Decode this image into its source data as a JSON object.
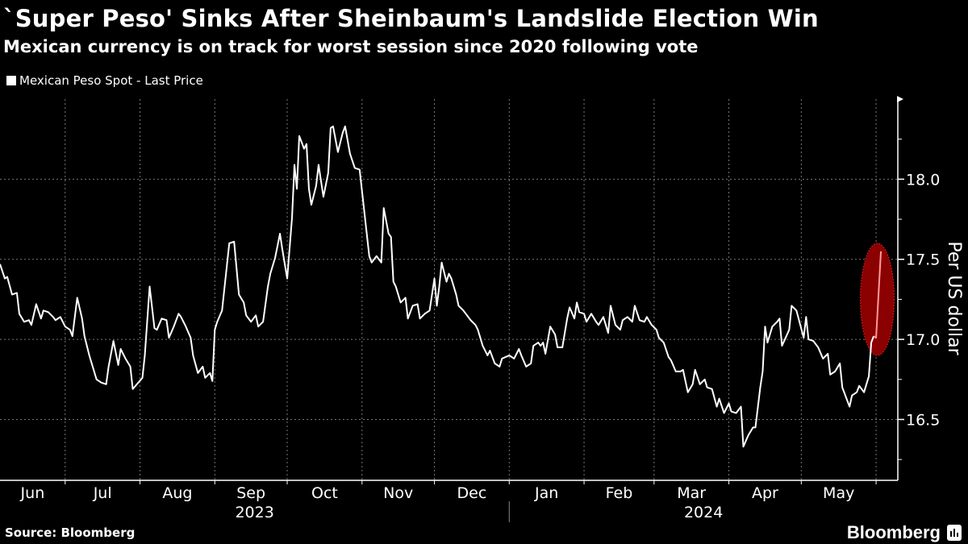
{
  "header": {
    "title": "`Super Peso' Sinks After Sheinbaum's Landslide Election Win",
    "subtitle": "Mexican currency is on track for worst session since 2020 following vote"
  },
  "footer": {
    "source": "Source: Bloomberg",
    "logo_text": "Bloomberg"
  },
  "colors": {
    "background": "#000000",
    "line": "#ffffff",
    "highlight": "#8b0000",
    "highlight_border": "#e02020",
    "highlight_line": "#ff9a9a"
  },
  "chart_data": {
    "type": "line",
    "title": "`Super Peso' Sinks After Sheinbaum's Landslide Election Win",
    "subtitle": "Mexican currency is on track for worst session since 2020 following vote",
    "ylabel": "Per US dollar",
    "y_axis_side": "right",
    "ylim": [
      16.12,
      18.5
    ],
    "yticks": [
      16.5,
      17.0,
      17.5,
      18.0
    ],
    "ytick_labels": [
      "16.5",
      "17.0",
      "17.5",
      "18.0"
    ],
    "yminor_step": 0.25,
    "xlim": [
      "2023-06-04",
      "2024-06-10"
    ],
    "month_labels": [
      {
        "month": "2023-06",
        "label": "Jun"
      },
      {
        "month": "2023-07",
        "label": "Jul"
      },
      {
        "month": "2023-08",
        "label": "Aug"
      },
      {
        "month": "2023-09",
        "label": "Sep"
      },
      {
        "month": "2023-10",
        "label": "Oct"
      },
      {
        "month": "2023-11",
        "label": "Nov"
      },
      {
        "month": "2023-12",
        "label": "Dec"
      },
      {
        "month": "2024-01",
        "label": "Jan"
      },
      {
        "month": "2024-02",
        "label": "Feb"
      },
      {
        "month": "2024-03",
        "label": "Mar"
      },
      {
        "month": "2024-04",
        "label": "Apr"
      },
      {
        "month": "2024-05",
        "label": "May"
      }
    ],
    "year_labels": [
      {
        "year": "2023",
        "label": "2023"
      },
      {
        "year": "2024",
        "label": "2024"
      }
    ],
    "grid": true,
    "legend_position": "top-left",
    "highlight": {
      "shape": "ellipse",
      "from": "2024-05-31",
      "to": "2024-06-03",
      "ymin": 16.9,
      "ymax": 17.6
    },
    "series": [
      {
        "name": "Mexican Peso Spot - Last Price",
        "color": "#ffffff",
        "points": [
          [
            "2023-06-04",
            17.47
          ],
          [
            "2023-06-06",
            17.38
          ],
          [
            "2023-06-07",
            17.39
          ],
          [
            "2023-06-09",
            17.28
          ],
          [
            "2023-06-11",
            17.29
          ],
          [
            "2023-06-12",
            17.16
          ],
          [
            "2023-06-14",
            17.11
          ],
          [
            "2023-06-16",
            17.12
          ],
          [
            "2023-06-17",
            17.09
          ],
          [
            "2023-06-19",
            17.22
          ],
          [
            "2023-06-21",
            17.13
          ],
          [
            "2023-06-22",
            17.18
          ],
          [
            "2023-06-24",
            17.17
          ],
          [
            "2023-06-26",
            17.14
          ],
          [
            "2023-06-27",
            17.12
          ],
          [
            "2023-06-29",
            17.14
          ],
          [
            "2023-07-01",
            17.08
          ],
          [
            "2023-07-03",
            17.06
          ],
          [
            "2023-07-04",
            17.02
          ],
          [
            "2023-07-06",
            17.26
          ],
          [
            "2023-07-08",
            17.13
          ],
          [
            "2023-07-09",
            17.02
          ],
          [
            "2023-07-11",
            16.9
          ],
          [
            "2023-07-13",
            16.8
          ],
          [
            "2023-07-14",
            16.75
          ],
          [
            "2023-07-16",
            16.73
          ],
          [
            "2023-07-18",
            16.72
          ],
          [
            "2023-07-19",
            16.83
          ],
          [
            "2023-07-21",
            16.99
          ],
          [
            "2023-07-23",
            16.84
          ],
          [
            "2023-07-24",
            16.94
          ],
          [
            "2023-07-26",
            16.88
          ],
          [
            "2023-07-28",
            16.83
          ],
          [
            "2023-07-29",
            16.69
          ],
          [
            "2023-08-02",
            16.76
          ],
          [
            "2023-08-03",
            16.9
          ],
          [
            "2023-08-05",
            17.33
          ],
          [
            "2023-08-07",
            17.07
          ],
          [
            "2023-08-08",
            17.06
          ],
          [
            "2023-08-10",
            17.13
          ],
          [
            "2023-08-12",
            17.12
          ],
          [
            "2023-08-13",
            17.01
          ],
          [
            "2023-08-15",
            17.08
          ],
          [
            "2023-08-17",
            17.16
          ],
          [
            "2023-08-18",
            17.14
          ],
          [
            "2023-08-20",
            17.08
          ],
          [
            "2023-08-22",
            17.01
          ],
          [
            "2023-08-23",
            16.9
          ],
          [
            "2023-08-25",
            16.79
          ],
          [
            "2023-08-27",
            16.83
          ],
          [
            "2023-08-28",
            16.76
          ],
          [
            "2023-08-30",
            16.79
          ],
          [
            "2023-08-31",
            16.74
          ],
          [
            "2023-09-01",
            17.06
          ],
          [
            "2023-09-02",
            17.11
          ],
          [
            "2023-09-04",
            17.18
          ],
          [
            "2023-09-06",
            17.46
          ],
          [
            "2023-09-07",
            17.6
          ],
          [
            "2023-09-09",
            17.61
          ],
          [
            "2023-09-11",
            17.28
          ],
          [
            "2023-09-13",
            17.23
          ],
          [
            "2023-09-14",
            17.15
          ],
          [
            "2023-09-16",
            17.11
          ],
          [
            "2023-09-18",
            17.15
          ],
          [
            "2023-09-19",
            17.08
          ],
          [
            "2023-09-21",
            17.11
          ],
          [
            "2023-09-23",
            17.33
          ],
          [
            "2023-09-24",
            17.41
          ],
          [
            "2023-09-26",
            17.51
          ],
          [
            "2023-09-28",
            17.66
          ],
          [
            "2023-09-29",
            17.56
          ],
          [
            "2023-10-01",
            17.38
          ],
          [
            "2023-10-03",
            17.76
          ],
          [
            "2023-10-04",
            18.09
          ],
          [
            "2023-10-05",
            17.94
          ],
          [
            "2023-10-06",
            18.27
          ],
          [
            "2023-10-08",
            18.19
          ],
          [
            "2023-10-09",
            18.22
          ],
          [
            "2023-10-10",
            17.94
          ],
          [
            "2023-10-11",
            17.84
          ],
          [
            "2023-10-13",
            17.96
          ],
          [
            "2023-10-14",
            18.09
          ],
          [
            "2023-10-16",
            17.89
          ],
          [
            "2023-10-18",
            18.04
          ],
          [
            "2023-10-19",
            18.32
          ],
          [
            "2023-10-20",
            18.33
          ],
          [
            "2023-10-22",
            18.17
          ],
          [
            "2023-10-24",
            18.29
          ],
          [
            "2023-10-25",
            18.33
          ],
          [
            "2023-10-27",
            18.16
          ],
          [
            "2023-10-29",
            18.07
          ],
          [
            "2023-10-31",
            18.06
          ],
          [
            "2023-11-02",
            17.79
          ],
          [
            "2023-11-04",
            17.52
          ],
          [
            "2023-11-05",
            17.48
          ],
          [
            "2023-11-07",
            17.52
          ],
          [
            "2023-11-09",
            17.48
          ],
          [
            "2023-11-10",
            17.82
          ],
          [
            "2023-11-12",
            17.66
          ],
          [
            "2023-11-13",
            17.64
          ],
          [
            "2023-11-14",
            17.36
          ],
          [
            "2023-11-15",
            17.33
          ],
          [
            "2023-11-17",
            17.23
          ],
          [
            "2023-11-19",
            17.26
          ],
          [
            "2023-11-20",
            17.13
          ],
          [
            "2023-11-22",
            17.21
          ],
          [
            "2023-11-24",
            17.22
          ],
          [
            "2023-11-25",
            17.13
          ],
          [
            "2023-11-27",
            17.16
          ],
          [
            "2023-11-29",
            17.18
          ],
          [
            "2023-11-30",
            17.28
          ],
          [
            "2023-12-01",
            17.38
          ],
          [
            "2023-12-02",
            17.21
          ],
          [
            "2023-12-03",
            17.33
          ],
          [
            "2023-12-04",
            17.48
          ],
          [
            "2023-12-06",
            17.36
          ],
          [
            "2023-12-07",
            17.41
          ],
          [
            "2023-12-08",
            17.38
          ],
          [
            "2023-12-10",
            17.28
          ],
          [
            "2023-12-11",
            17.21
          ],
          [
            "2023-12-13",
            17.18
          ],
          [
            "2023-12-14",
            17.16
          ],
          [
            "2023-12-16",
            17.12
          ],
          [
            "2023-12-18",
            17.09
          ],
          [
            "2023-12-19",
            17.06
          ],
          [
            "2023-12-21",
            16.96
          ],
          [
            "2023-12-23",
            16.9
          ],
          [
            "2023-12-24",
            16.93
          ],
          [
            "2023-12-26",
            16.85
          ],
          [
            "2023-12-28",
            16.83
          ],
          [
            "2023-12-29",
            16.88
          ],
          [
            "2024-01-01",
            16.9
          ],
          [
            "2024-01-03",
            16.88
          ],
          [
            "2024-01-05",
            16.94
          ],
          [
            "2024-01-06",
            16.9
          ],
          [
            "2024-01-08",
            16.83
          ],
          [
            "2024-01-10",
            16.85
          ],
          [
            "2024-01-11",
            16.96
          ],
          [
            "2024-01-13",
            16.98
          ],
          [
            "2024-01-14",
            16.96
          ],
          [
            "2024-01-15",
            16.98
          ],
          [
            "2024-01-16",
            16.91
          ],
          [
            "2024-01-18",
            17.08
          ],
          [
            "2024-01-20",
            17.03
          ],
          [
            "2024-01-21",
            16.95
          ],
          [
            "2024-01-23",
            16.95
          ],
          [
            "2024-01-25",
            17.13
          ],
          [
            "2024-01-26",
            17.2
          ],
          [
            "2024-01-28",
            17.13
          ],
          [
            "2024-01-29",
            17.23
          ],
          [
            "2024-01-30",
            17.17
          ],
          [
            "2024-02-01",
            17.16
          ],
          [
            "2024-02-02",
            17.11
          ],
          [
            "2024-02-04",
            17.16
          ],
          [
            "2024-02-06",
            17.11
          ],
          [
            "2024-02-07",
            17.09
          ],
          [
            "2024-02-09",
            17.14
          ],
          [
            "2024-02-11",
            17.04
          ],
          [
            "2024-02-12",
            17.21
          ],
          [
            "2024-02-14",
            17.09
          ],
          [
            "2024-02-16",
            17.06
          ],
          [
            "2024-02-17",
            17.12
          ],
          [
            "2024-02-19",
            17.14
          ],
          [
            "2024-02-21",
            17.11
          ],
          [
            "2024-02-22",
            17.21
          ],
          [
            "2024-02-24",
            17.12
          ],
          [
            "2024-02-26",
            17.11
          ],
          [
            "2024-02-27",
            17.14
          ],
          [
            "2024-02-29",
            17.09
          ],
          [
            "2024-03-02",
            17.06
          ],
          [
            "2024-03-03",
            17.01
          ],
          [
            "2024-03-05",
            16.98
          ],
          [
            "2024-03-07",
            16.89
          ],
          [
            "2024-03-08",
            16.87
          ],
          [
            "2024-03-10",
            16.8
          ],
          [
            "2024-03-12",
            16.8
          ],
          [
            "2024-03-13",
            16.81
          ],
          [
            "2024-03-15",
            16.67
          ],
          [
            "2024-03-17",
            16.72
          ],
          [
            "2024-03-18",
            16.81
          ],
          [
            "2024-03-20",
            16.72
          ],
          [
            "2024-03-22",
            16.75
          ],
          [
            "2024-03-23",
            16.7
          ],
          [
            "2024-03-25",
            16.69
          ],
          [
            "2024-03-27",
            16.58
          ],
          [
            "2024-03-28",
            16.63
          ],
          [
            "2024-03-30",
            16.54
          ],
          [
            "2024-04-01",
            16.6
          ],
          [
            "2024-04-02",
            16.55
          ],
          [
            "2024-04-04",
            16.54
          ],
          [
            "2024-04-06",
            16.58
          ],
          [
            "2024-04-07",
            16.33
          ],
          [
            "2024-04-09",
            16.4
          ],
          [
            "2024-04-11",
            16.45
          ],
          [
            "2024-04-12",
            16.45
          ],
          [
            "2024-04-14",
            16.7
          ],
          [
            "2024-04-15",
            16.8
          ],
          [
            "2024-04-16",
            17.08
          ],
          [
            "2024-04-17",
            16.98
          ],
          [
            "2024-04-19",
            17.08
          ],
          [
            "2024-04-21",
            17.11
          ],
          [
            "2024-04-22",
            17.13
          ],
          [
            "2024-04-23",
            16.96
          ],
          [
            "2024-04-26",
            17.06
          ],
          [
            "2024-04-27",
            17.21
          ],
          [
            "2024-04-29",
            17.18
          ],
          [
            "2024-05-02",
            17.01
          ],
          [
            "2024-05-03",
            17.14
          ],
          [
            "2024-05-04",
            17.0
          ],
          [
            "2024-05-06",
            16.99
          ],
          [
            "2024-05-08",
            16.95
          ],
          [
            "2024-05-10",
            16.88
          ],
          [
            "2024-05-12",
            16.91
          ],
          [
            "2024-05-13",
            16.78
          ],
          [
            "2024-05-15",
            16.8
          ],
          [
            "2024-05-17",
            16.85
          ],
          [
            "2024-05-18",
            16.7
          ],
          [
            "2024-05-21",
            16.58
          ],
          [
            "2024-05-22",
            16.65
          ],
          [
            "2024-05-24",
            16.67
          ],
          [
            "2024-05-25",
            16.71
          ],
          [
            "2024-05-27",
            16.67
          ],
          [
            "2024-05-29",
            16.77
          ],
          [
            "2024-05-30",
            16.98
          ],
          [
            "2024-05-31",
            17.02
          ],
          [
            "2024-06-01",
            17.01
          ],
          [
            "2024-06-03",
            17.55
          ]
        ]
      }
    ]
  }
}
